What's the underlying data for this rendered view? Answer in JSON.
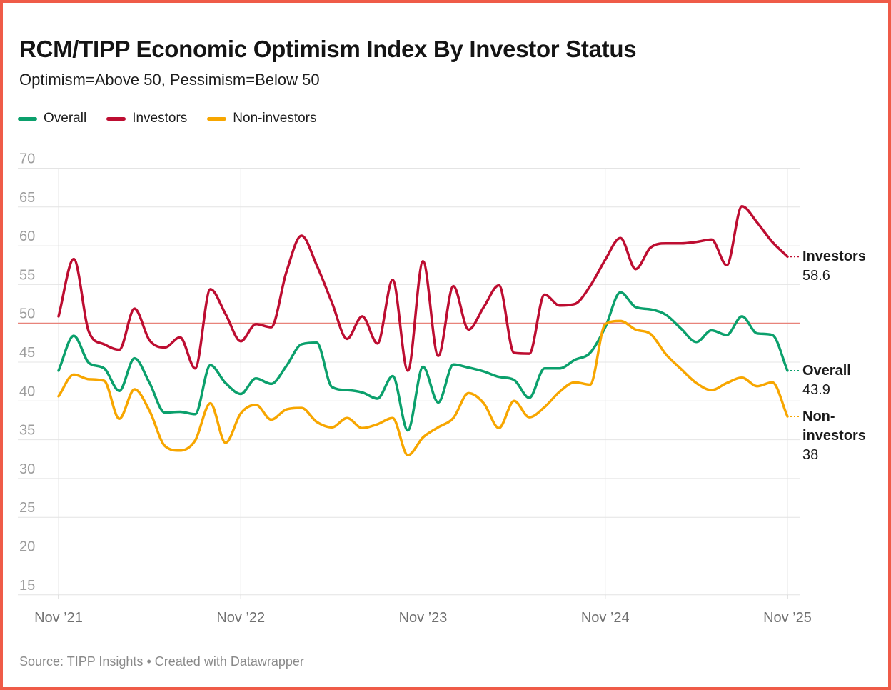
{
  "title": "RCM/TIPP Economic Optimism Index By Investor Status",
  "subtitle": "Optimism=Above 50, Pessimism=Below 50",
  "footer": {
    "source": "Source: TIPP Insights",
    "separator": "•",
    "credit": "Created with Datawrapper"
  },
  "colors": {
    "overall": "#0ba06c",
    "investors": "#bd0d31",
    "non_investors": "#f7a600",
    "reference_line": "#e8837a",
    "frame": "#ef5b48",
    "gridline": "#e4e4e4",
    "tick_stub": "#c9c9c9",
    "y_axis_text": "#9d9d9d",
    "x_axis_text": "#6f6f6f",
    "footer_text": "#8a8a8a",
    "title_text": "#141414"
  },
  "chart_data": {
    "type": "line",
    "title": "RCM/TIPP Economic Optimism Index By Investor Status",
    "subtitle": "Optimism=Above 50, Pessimism=Below 50",
    "ylim": [
      15,
      70
    ],
    "yticks": [
      15,
      20,
      25,
      30,
      35,
      40,
      45,
      50,
      55,
      60,
      65,
      70
    ],
    "reference_line": 50,
    "grid": true,
    "legend_position": "top",
    "x": [
      "2021-11",
      "2021-12",
      "2022-01",
      "2022-02",
      "2022-03",
      "2022-04",
      "2022-05",
      "2022-06",
      "2022-07",
      "2022-08",
      "2022-09",
      "2022-10",
      "2022-11",
      "2022-12",
      "2023-01",
      "2023-02",
      "2023-03",
      "2023-04",
      "2023-05",
      "2023-06",
      "2023-07",
      "2023-08",
      "2023-09",
      "2023-10",
      "2023-11",
      "2023-12",
      "2024-01",
      "2024-02",
      "2024-03",
      "2024-04",
      "2024-05",
      "2024-06",
      "2024-07",
      "2024-08",
      "2024-09",
      "2024-10",
      "2024-11",
      "2024-12",
      "2025-01",
      "2025-02",
      "2025-03",
      "2025-04",
      "2025-05",
      "2025-06",
      "2025-07",
      "2025-08",
      "2025-09",
      "2025-10",
      "2025-11"
    ],
    "x_tick_positions": [
      0,
      12,
      24,
      36,
      48
    ],
    "x_tick_labels": [
      "Nov ’21",
      "Nov ’22",
      "Nov ’23",
      "Nov ’24",
      "Nov ’25"
    ],
    "series": [
      {
        "name": "Overall",
        "color": "#0ba06c",
        "values": [
          43.9,
          48.4,
          44.9,
          44.2,
          41.3,
          45.5,
          42.3,
          38.5,
          38.6,
          38.3,
          44.6,
          42.3,
          40.9,
          42.9,
          42.2,
          44.5,
          47.3,
          47.5,
          41.8,
          41.4,
          41.1,
          40.3,
          43.2,
          36.2,
          44.4,
          39.8,
          44.7,
          44.3,
          43.8,
          43.1,
          42.7,
          40.4,
          44.2,
          44.2,
          45.3,
          46.2,
          49.5,
          54.0,
          52.1,
          51.8,
          51.1,
          49.3,
          47.6,
          49.1,
          48.5,
          50.9,
          48.7,
          48.5,
          43.9
        ]
      },
      {
        "name": "Investors",
        "color": "#bd0d31",
        "values": [
          50.9,
          58.3,
          48.9,
          47.3,
          46.6,
          51.9,
          47.8,
          46.9,
          48.2,
          44.2,
          54.4,
          51.2,
          47.7,
          49.9,
          49.5,
          56.6,
          61.3,
          57.5,
          52.7,
          48.0,
          50.9,
          47.4,
          55.6,
          43.9,
          58.0,
          45.8,
          54.8,
          49.2,
          52.1,
          54.9,
          46.2,
          46.1,
          53.7,
          52.3,
          52.5,
          54.8,
          58.2,
          61.0,
          57.0,
          59.8,
          60.3,
          60.3,
          60.5,
          60.8,
          57.5,
          65.1,
          63.0,
          60.5,
          58.6
        ]
      },
      {
        "name": "Non-investors",
        "color": "#f7a600",
        "values": [
          40.6,
          43.4,
          42.8,
          42.6,
          37.7,
          41.5,
          38.7,
          34.2,
          33.6,
          34.9,
          39.7,
          34.6,
          38.4,
          39.5,
          37.6,
          38.9,
          39.1,
          37.3,
          36.6,
          37.8,
          36.5,
          37.0,
          37.8,
          33.0,
          35.3,
          36.6,
          37.8,
          41.0,
          39.7,
          36.5,
          40.0,
          37.9,
          39.2,
          41.2,
          42.4,
          42.1,
          49.9,
          50.3,
          49.2,
          48.6,
          46.0,
          44.1,
          42.3,
          41.4,
          42.3,
          43.0,
          41.9,
          42.4,
          38.0
        ]
      }
    ],
    "end_labels": [
      {
        "name": "Investors",
        "value": "58.6"
      },
      {
        "name": "Overall",
        "value": "43.9"
      },
      {
        "name": "Non-investors",
        "value": "38"
      }
    ]
  }
}
